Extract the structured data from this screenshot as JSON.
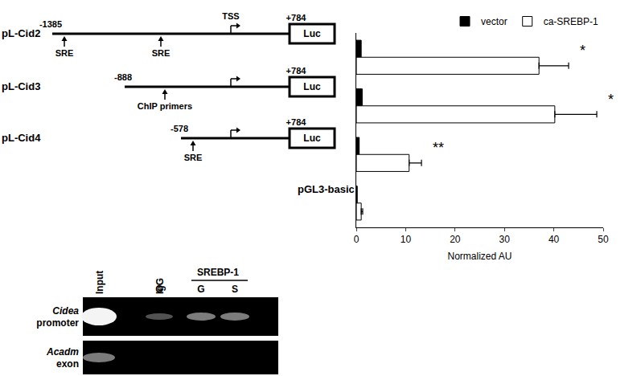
{
  "chart_data": {
    "type": "bar",
    "orientation": "horizontal",
    "categories": [
      "pL-Cid2",
      "pL-Cid3",
      "pL-Cid4",
      "pGL3-basic"
    ],
    "series": [
      {
        "name": "vector",
        "color": "#000000",
        "values": [
          1.0,
          1.2,
          0.6,
          0.2
        ]
      },
      {
        "name": "ca-SREBP-1",
        "color": "#ffffff",
        "values": [
          37.0,
          40.2,
          10.7,
          1.0
        ],
        "errors": [
          6.0,
          8.5,
          2.5,
          0.3
        ],
        "significance": [
          "*",
          "*",
          "**",
          null
        ]
      }
    ],
    "x_label": "Normalized AU",
    "xlim": [
      0,
      50
    ],
    "xticks": [
      0,
      10,
      20,
      30,
      40,
      50
    ],
    "grid": false,
    "legend": "top right",
    "tick_labels": "x"
  },
  "constructs": {
    "tss_label": "TSS",
    "reporter": "Luc",
    "items": [
      {
        "start": "-1385",
        "end": "+784",
        "marks": [
          "SRE",
          "SRE"
        ]
      },
      {
        "start": "-888",
        "end": "+784",
        "marks": [
          "ChIP primers"
        ]
      },
      {
        "start": "-578",
        "end": "+784",
        "marks": [
          "SRE"
        ]
      }
    ]
  },
  "gel": {
    "lanes": [
      "Input",
      "IgG",
      "SREBP-1"
    ],
    "sublanes": [
      "G",
      "G",
      "S"
    ],
    "rows": [
      {
        "gene": "Cidea",
        "label": "promoter"
      },
      {
        "gene": "Acadm",
        "label": "exon"
      }
    ]
  }
}
